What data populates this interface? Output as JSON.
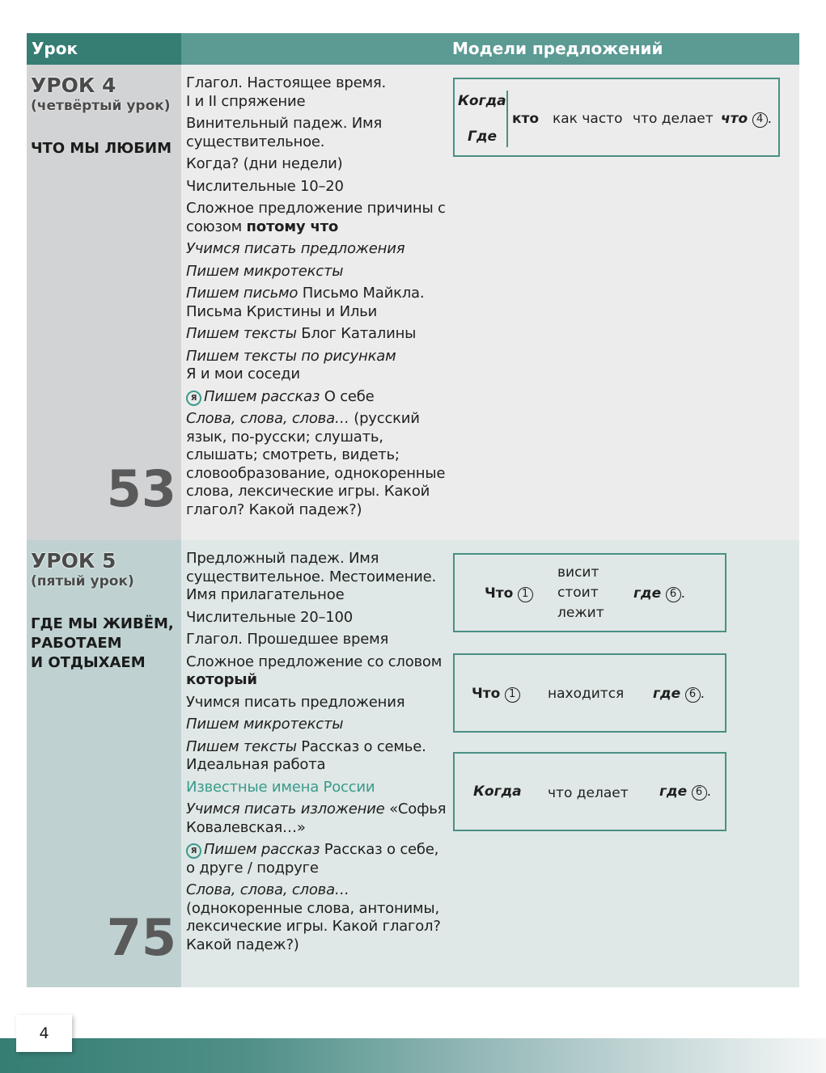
{
  "header": {
    "col_lesson": "Урок",
    "col_models": "Модели предложений"
  },
  "lessons": [
    {
      "number": "УРОК 4",
      "subtitle": "(четвёртый урок)",
      "title": [
        "ЧТО МЫ ЛЮБИМ"
      ],
      "pages": "53",
      "items": [
        [
          {
            "t": "Глагол.  Настоящее время.",
            "s": "n"
          },
          {
            "t": "\nI и II спряжение",
            "s": "n"
          }
        ],
        [
          {
            "t": "Винительный падеж. Имя существительное.",
            "s": "n"
          }
        ],
        [
          {
            "t": "Когда? (дни недели)",
            "s": "n"
          }
        ],
        [
          {
            "t": "Числительные 10–20",
            "s": "n"
          }
        ],
        [
          {
            "t": "Сложное предложение причины с союзом ",
            "s": "n"
          },
          {
            "t": "потому что",
            "s": "b"
          }
        ],
        [
          {
            "t": "Учимся писать предложения",
            "s": "i"
          }
        ],
        [
          {
            "t": "Пишем микротексты",
            "s": "i"
          }
        ],
        [
          {
            "t": "Пишем письмо",
            "s": "i"
          },
          {
            "t": " Письмо Майкла. Письма Кристины и Ильи",
            "s": "n"
          }
        ],
        [
          {
            "t": "Пишем тексты",
            "s": "i"
          },
          {
            "t": " Блог Каталины",
            "s": "n"
          }
        ],
        [
          {
            "t": "Пишем тексты по рисункам",
            "s": "i"
          },
          {
            "t": "\nЯ и мои соседи",
            "s": "n"
          }
        ],
        [
          {
            "t": "Я",
            "s": "ya"
          },
          {
            "t": "Пишем рассказ",
            "s": "i"
          },
          {
            "t": " О себе",
            "s": "n"
          }
        ],
        [
          {
            "t": "Слова, слова, слова…",
            "s": "i"
          },
          {
            "t": " (русский язык, по-русски; слушать, слышать; смотреть, видеть; словообразование, однокоренные слова, лексические игры. Какой глагол? Какой падеж?)",
            "s": "n"
          }
        ]
      ]
    },
    {
      "number": "УРОК 5",
      "subtitle": "(пятый урок)",
      "title": [
        "ГДЕ МЫ ЖИВЁМ,",
        "РАБОТАЕМ",
        "И ОТДЫХАЕМ"
      ],
      "pages": "75",
      "items": [
        [
          {
            "t": "Предложный падеж. Имя существительное. Местоимение. Имя прилагательное",
            "s": "n"
          }
        ],
        [
          {
            "t": "Числительные 20–100",
            "s": "n"
          }
        ],
        [
          {
            "t": "Глагол. Прошедшее время",
            "s": "n"
          }
        ],
        [
          {
            "t": "Сложное предложение со словом ",
            "s": "n"
          },
          {
            "t": "который",
            "s": "b"
          }
        ],
        [
          {
            "t": "Учимся писать предложения",
            "s": "n"
          }
        ],
        [
          {
            "t": "Пишем микротексты",
            "s": "i"
          }
        ],
        [
          {
            "t": "Пишем тексты",
            "s": "i"
          },
          {
            "t": " Рассказ о семье. Идеальная работа",
            "s": "n"
          }
        ],
        [
          {
            "t": "Известные имена России",
            "s": "link"
          }
        ],
        [
          {
            "t": "Учимся писать изложение",
            "s": "i"
          },
          {
            "t": " «Софья Ковалевская…»",
            "s": "n"
          }
        ],
        [
          {
            "t": "Я",
            "s": "ya"
          },
          {
            "t": "Пишем рассказ",
            "s": "i"
          },
          {
            "t": " Рассказ о себе, о друге / подруге",
            "s": "n"
          }
        ],
        [
          {
            "t": "Слова, слова, слова…",
            "s": "i"
          },
          {
            "t": "\n(однокоренные слова, антонимы, лексические игры. Какой глагол? Какой падеж?)",
            "s": "n"
          }
        ]
      ]
    }
  ],
  "models": {
    "m1": {
      "when": "Когда",
      "where": "Где",
      "who": "кто",
      "how_often": "как часто",
      "does": "что делает",
      "what": "что",
      "case": "4",
      "end": "."
    },
    "m2": {
      "what": "Что",
      "case1": "1",
      "verbs": [
        "висит",
        "стоит",
        "лежит"
      ],
      "where": "где",
      "case6": "6",
      "end": "."
    },
    "m3": {
      "what": "Что",
      "case1": "1",
      "verb": "находится",
      "where": "где",
      "case6": "6",
      "end": "."
    },
    "m4": {
      "when": "Когда",
      "does": "что делает",
      "where": "где",
      "case6": "6",
      "end": "."
    }
  },
  "page_number": "4",
  "colors": {
    "header_dark": "#367d74",
    "header_light": "#5c9a94",
    "accent": "#3a9a8c"
  }
}
